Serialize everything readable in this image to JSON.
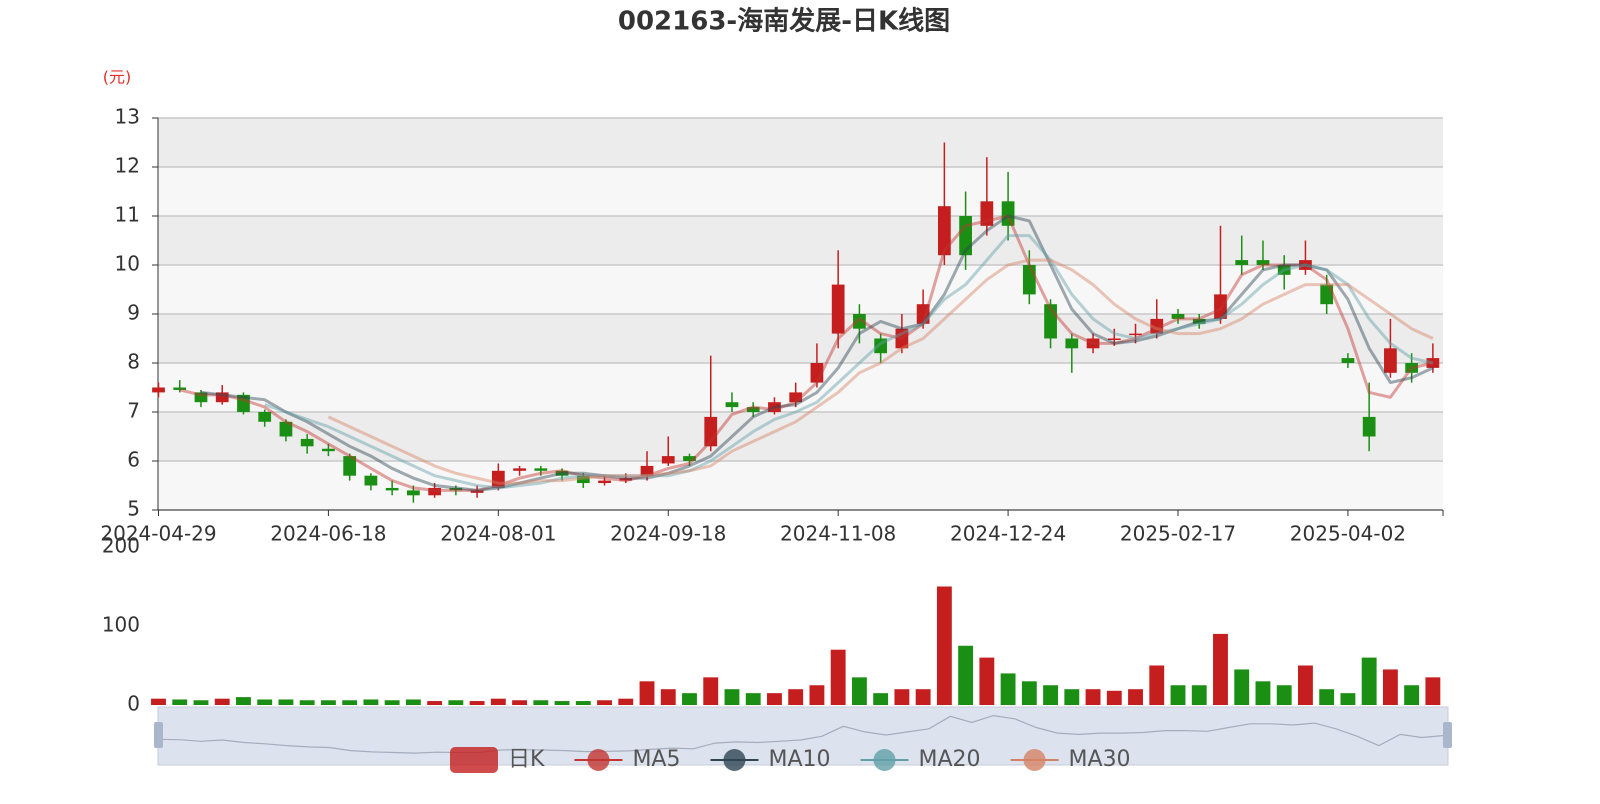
{
  "chart_data": {
    "type": "candlestick",
    "title": "002163-海南发展-日K线图",
    "y_axis_label": "(元)",
    "categories": [
      "2024-04-29",
      null,
      null,
      null,
      null,
      null,
      null,
      null,
      "2024-06-18",
      null,
      null,
      null,
      null,
      null,
      null,
      null,
      "2024-08-01",
      null,
      null,
      null,
      null,
      null,
      null,
      null,
      "2024-09-18",
      null,
      null,
      null,
      null,
      null,
      null,
      null,
      "2024-11-08",
      null,
      null,
      null,
      null,
      null,
      null,
      null,
      "2024-12-24",
      null,
      null,
      null,
      null,
      null,
      null,
      null,
      "2025-02-17",
      null,
      null,
      null,
      null,
      null,
      null,
      null,
      "2025-04-02",
      null,
      null,
      null,
      null
    ],
    "ylim": [
      5,
      13
    ],
    "yticks": [
      5,
      6,
      7,
      8,
      9,
      10,
      11,
      12,
      13
    ],
    "grid": true,
    "series": [
      {
        "name": "日K",
        "type": "candlestick",
        "color": "#c41e1e",
        "down_color": "#1b8f14",
        "values": [
          [
            7.4,
            7.5,
            7.3,
            7.6
          ],
          [
            7.5,
            7.45,
            7.4,
            7.65
          ],
          [
            7.4,
            7.2,
            7.1,
            7.45
          ],
          [
            7.2,
            7.4,
            7.15,
            7.55
          ],
          [
            7.35,
            7.0,
            6.95,
            7.4
          ],
          [
            7.0,
            6.8,
            6.7,
            7.05
          ],
          [
            6.8,
            6.5,
            6.4,
            6.85
          ],
          [
            6.45,
            6.3,
            6.15,
            6.55
          ],
          [
            6.25,
            6.2,
            6.1,
            6.35
          ],
          [
            6.1,
            5.7,
            5.6,
            6.15
          ],
          [
            5.7,
            5.5,
            5.4,
            5.75
          ],
          [
            5.45,
            5.4,
            5.3,
            5.6
          ],
          [
            5.4,
            5.3,
            5.15,
            5.5
          ],
          [
            5.3,
            5.45,
            5.25,
            5.55
          ],
          [
            5.45,
            5.4,
            5.3,
            5.5
          ],
          [
            5.35,
            5.4,
            5.25,
            5.5
          ],
          [
            5.45,
            5.8,
            5.4,
            5.95
          ],
          [
            5.8,
            5.85,
            5.7,
            5.9
          ],
          [
            5.85,
            5.8,
            5.7,
            5.9
          ],
          [
            5.8,
            5.7,
            5.6,
            5.85
          ],
          [
            5.7,
            5.55,
            5.45,
            5.75
          ],
          [
            5.55,
            5.6,
            5.5,
            5.7
          ],
          [
            5.6,
            5.65,
            5.55,
            5.75
          ],
          [
            5.7,
            5.9,
            5.6,
            6.2
          ],
          [
            5.95,
            6.1,
            5.9,
            6.5
          ],
          [
            6.1,
            6.0,
            5.9,
            6.15
          ],
          [
            6.3,
            6.9,
            6.2,
            8.15
          ],
          [
            7.2,
            7.1,
            7.0,
            7.4
          ],
          [
            7.1,
            7.0,
            6.9,
            7.2
          ],
          [
            7.0,
            7.2,
            6.95,
            7.3
          ],
          [
            7.2,
            7.4,
            7.1,
            7.6
          ],
          [
            7.6,
            8.0,
            7.5,
            8.4
          ],
          [
            8.6,
            9.6,
            8.3,
            10.3
          ],
          [
            9.0,
            8.7,
            8.4,
            9.2
          ],
          [
            8.5,
            8.2,
            8.0,
            8.6
          ],
          [
            8.3,
            8.7,
            8.2,
            9.0
          ],
          [
            8.8,
            9.2,
            8.7,
            9.5
          ],
          [
            10.2,
            11.2,
            10.0,
            12.5
          ],
          [
            11.0,
            10.2,
            9.9,
            11.5
          ],
          [
            10.8,
            11.3,
            10.6,
            12.2
          ],
          [
            11.3,
            10.8,
            10.5,
            11.9
          ],
          [
            10.0,
            9.4,
            9.2,
            10.3
          ],
          [
            9.2,
            8.5,
            8.3,
            9.3
          ],
          [
            8.5,
            8.3,
            7.8,
            8.6
          ],
          [
            8.3,
            8.5,
            8.2,
            8.6
          ],
          [
            8.5,
            8.5,
            8.35,
            8.7
          ],
          [
            8.6,
            8.6,
            8.4,
            8.8
          ],
          [
            8.6,
            8.9,
            8.5,
            9.3
          ],
          [
            9.0,
            8.9,
            8.8,
            9.1
          ],
          [
            8.9,
            8.8,
            8.7,
            9.0
          ],
          [
            8.9,
            9.4,
            8.8,
            10.8
          ],
          [
            10.1,
            10.0,
            9.8,
            10.6
          ],
          [
            10.1,
            10.0,
            9.9,
            10.5
          ],
          [
            10.0,
            9.8,
            9.5,
            10.2
          ],
          [
            9.9,
            10.1,
            9.8,
            10.5
          ],
          [
            9.6,
            9.2,
            9.0,
            9.8
          ],
          [
            8.1,
            8.0,
            7.9,
            8.2
          ],
          [
            6.9,
            6.5,
            6.2,
            7.6
          ],
          [
            7.8,
            8.3,
            7.7,
            8.9
          ],
          [
            8.0,
            7.8,
            7.6,
            8.2
          ],
          [
            7.9,
            8.1,
            7.8,
            8.4
          ]
        ]
      },
      {
        "name": "MA5",
        "type": "line",
        "color": "#c23531",
        "values": [
          null,
          7.45,
          7.35,
          7.35,
          7.25,
          7.1,
          6.8,
          6.6,
          6.35,
          6.1,
          5.85,
          5.6,
          5.45,
          5.4,
          5.4,
          5.4,
          5.5,
          5.65,
          5.75,
          5.8,
          5.7,
          5.65,
          5.6,
          5.7,
          5.85,
          5.95,
          6.4,
          6.95,
          7.1,
          7.05,
          7.2,
          7.6,
          8.5,
          8.9,
          8.6,
          8.5,
          8.8,
          10.3,
          10.8,
          10.9,
          11.0,
          10.0,
          9.1,
          8.6,
          8.4,
          8.4,
          8.5,
          8.7,
          8.9,
          8.9,
          9.1,
          9.8,
          10.0,
          10.0,
          10.0,
          9.7,
          8.7,
          7.4,
          7.3,
          7.9,
          8.0
        ]
      },
      {
        "name": "MA10",
        "type": "line",
        "color": "#2f4554",
        "values": [
          null,
          null,
          7.4,
          7.35,
          7.3,
          7.25,
          7.0,
          6.8,
          6.55,
          6.3,
          6.1,
          5.85,
          5.65,
          5.5,
          5.45,
          5.4,
          5.45,
          5.55,
          5.65,
          5.75,
          5.75,
          5.7,
          5.65,
          5.65,
          5.75,
          5.9,
          6.1,
          6.5,
          6.9,
          7.1,
          7.15,
          7.4,
          7.9,
          8.6,
          8.85,
          8.7,
          8.8,
          9.4,
          10.3,
          10.7,
          11.0,
          10.9,
          10.0,
          9.1,
          8.6,
          8.4,
          8.45,
          8.55,
          8.7,
          8.85,
          8.9,
          9.4,
          9.9,
          10.0,
          10.0,
          9.9,
          9.3,
          8.3,
          7.6,
          7.7,
          7.9
        ]
      },
      {
        "name": "MA20",
        "type": "line",
        "color": "#61a0a8",
        "values": [
          null,
          null,
          null,
          null,
          null,
          7.15,
          7.0,
          6.85,
          6.7,
          6.5,
          6.3,
          6.1,
          5.9,
          5.7,
          5.6,
          5.5,
          5.45,
          5.5,
          5.55,
          5.65,
          5.7,
          5.7,
          5.7,
          5.7,
          5.7,
          5.8,
          6.0,
          6.3,
          6.6,
          6.85,
          7.0,
          7.2,
          7.6,
          8.0,
          8.4,
          8.6,
          8.8,
          9.3,
          9.6,
          10.1,
          10.6,
          10.6,
          10.1,
          9.4,
          8.9,
          8.6,
          8.5,
          8.6,
          8.7,
          8.8,
          8.9,
          9.2,
          9.6,
          9.9,
          10.0,
          9.9,
          9.6,
          8.9,
          8.4,
          8.1,
          8.0
        ]
      },
      {
        "name": "MA30",
        "type": "line",
        "color": "#d48265",
        "values": [
          null,
          null,
          null,
          null,
          null,
          null,
          null,
          null,
          6.9,
          6.7,
          6.5,
          6.3,
          6.1,
          5.9,
          5.75,
          5.65,
          5.55,
          5.55,
          5.6,
          5.6,
          5.65,
          5.7,
          5.7,
          5.7,
          5.75,
          5.8,
          5.9,
          6.2,
          6.4,
          6.6,
          6.8,
          7.1,
          7.4,
          7.8,
          8.0,
          8.3,
          8.5,
          8.9,
          9.3,
          9.7,
          10.0,
          10.1,
          10.1,
          9.9,
          9.6,
          9.2,
          8.9,
          8.7,
          8.6,
          8.6,
          8.7,
          8.9,
          9.2,
          9.4,
          9.6,
          9.6,
          9.6,
          9.3,
          9.0,
          8.7,
          8.5
        ]
      }
    ],
    "volume": {
      "ylim": [
        0,
        200
      ],
      "yticks": [
        0,
        100,
        200
      ],
      "values": [
        8,
        7,
        6,
        8,
        10,
        7,
        7,
        6,
        6,
        6,
        7,
        6,
        7,
        5,
        6,
        5,
        8,
        6,
        6,
        5,
        5,
        6,
        8,
        30,
        20,
        15,
        35,
        20,
        15,
        15,
        20,
        25,
        70,
        35,
        15,
        20,
        20,
        150,
        75,
        60,
        40,
        30,
        25,
        20,
        20,
        18,
        20,
        50,
        25,
        25,
        90,
        45,
        30,
        25,
        50,
        20,
        15,
        60,
        45,
        25,
        35
      ]
    }
  }
}
